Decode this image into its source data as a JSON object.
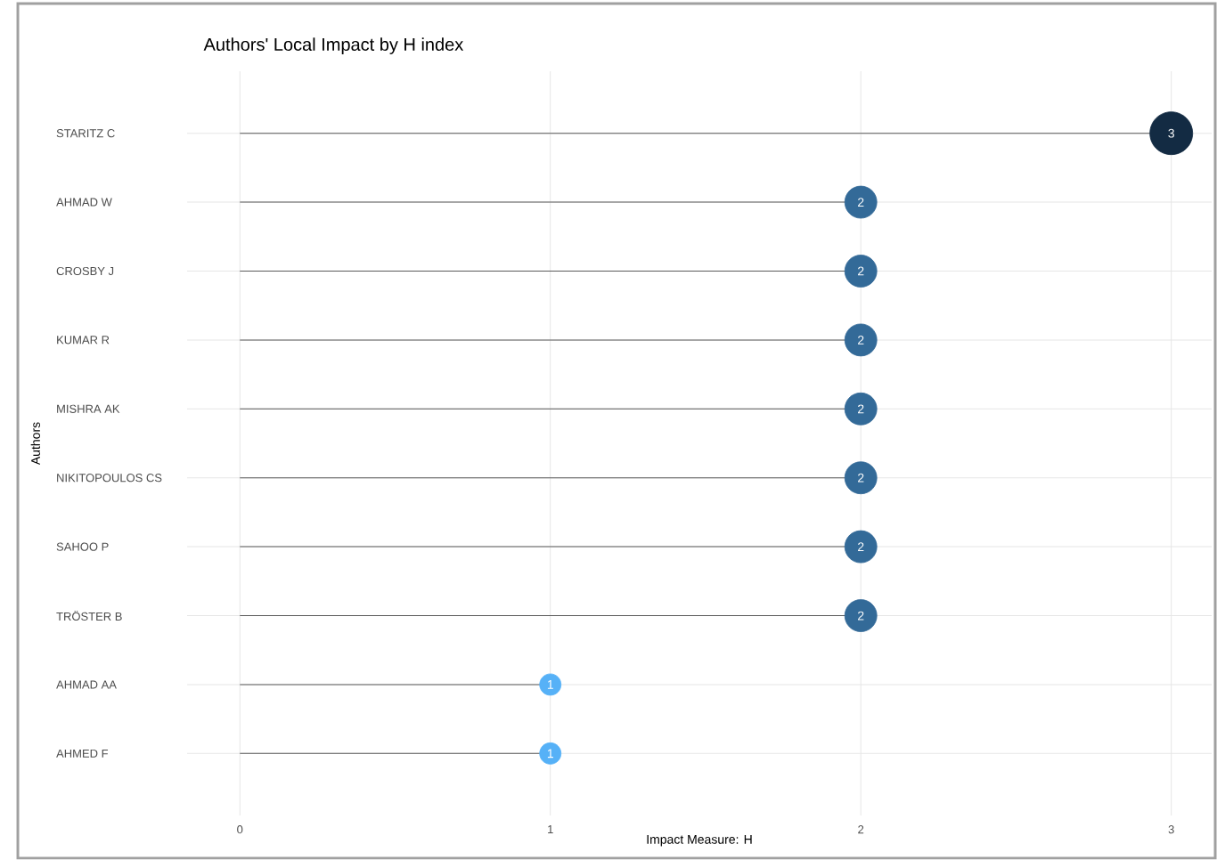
{
  "chart_data": {
    "type": "lollipop",
    "orientation": "horizontal",
    "title": "Authors' Local Impact by H index",
    "xlabel": "Impact Measure: H",
    "ylabel": "Authors",
    "categories": [
      "STARITZ C",
      "AHMAD W",
      "CROSBY J",
      "KUMAR R",
      "MISHRA AK",
      "NIKITOPOULOS CS",
      "SAHOO P",
      "TRÖSTER B",
      "AHMAD AA",
      "AHMED F"
    ],
    "values": [
      3,
      2,
      2,
      2,
      2,
      2,
      2,
      2,
      1,
      1
    ],
    "colors": [
      "#132b43",
      "#336a98",
      "#336a98",
      "#336a98",
      "#336a98",
      "#336a98",
      "#336a98",
      "#336a98",
      "#56b1f7",
      "#56b1f7"
    ],
    "xlim": [
      -0.17,
      3.13
    ],
    "xticks": [
      0,
      1,
      2,
      3
    ],
    "grid": true,
    "data_labels": true
  }
}
